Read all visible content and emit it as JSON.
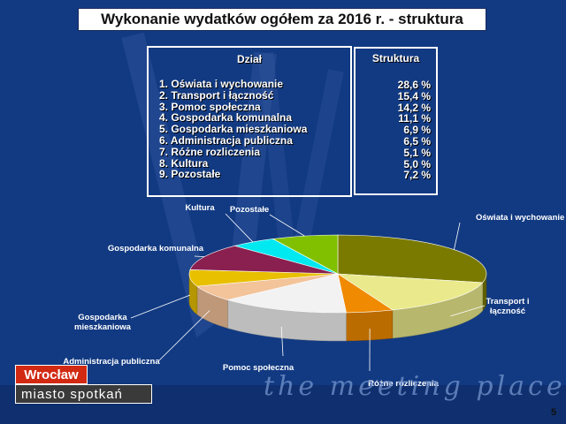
{
  "title": "Wykonanie wydatków ogółem za 2016 r. - struktura",
  "table": {
    "header_left": "Dział",
    "header_right": "Struktura",
    "rows": [
      {
        "label": "1. Oświata i wychowanie",
        "value": "28,6 %"
      },
      {
        "label": "2. Transport i łączność",
        "value": "15,4 %"
      },
      {
        "label": "3. Pomoc społeczna",
        "value": "14,2 %"
      },
      {
        "label": "4. Gospodarka komunalna",
        "value": "11,1 %"
      },
      {
        "label": "5. Gospodarka mieszkaniowa",
        "value": "6,9 %"
      },
      {
        "label": "6. Administracja  publiczna",
        "value": "6,5 %"
      },
      {
        "label": "7. Różne rozliczenia",
        "value": "5,1 %"
      },
      {
        "label": "8. Kultura",
        "value": "5,0 %"
      },
      {
        "label": "9. Pozostałe",
        "value": "7,2 %"
      }
    ]
  },
  "chart_data": {
    "type": "pie",
    "slices": [
      {
        "label": "Oświata i wychowanie",
        "value": 28.6,
        "color": "#7a7a00"
      },
      {
        "label": "Transport i\nłączność",
        "value": 15.4,
        "color": "#eaea8c"
      },
      {
        "label": "Różne rozliczenia",
        "value": 5.1,
        "color": "#f08a00"
      },
      {
        "label": "Pomoc społeczna",
        "value": 14.2,
        "color": "#f2f2f2"
      },
      {
        "label": "Administracja publiczna",
        "value": 6.5,
        "color": "#f3c39a"
      },
      {
        "label": "Gospodarka\nmieszkaniowa",
        "value": 6.9,
        "color": "#e8c000"
      },
      {
        "label": "Gospodarka komunalna",
        "value": 11.1,
        "color": "#8a2050"
      },
      {
        "label": "Kultura",
        "value": 5.0,
        "color": "#00e8f0"
      },
      {
        "label": "Pozostałe",
        "value": 7.2,
        "color": "#80c000"
      }
    ]
  },
  "logo": {
    "top": "Wrocław",
    "bottom": "miasto spotkań"
  },
  "slogan": "the meeting place",
  "page_number": "5"
}
